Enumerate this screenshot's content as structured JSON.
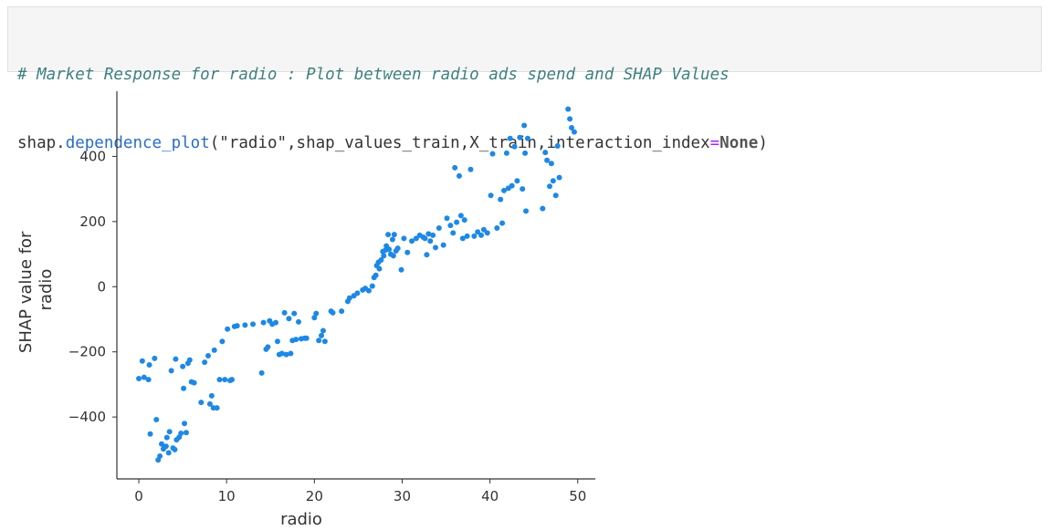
{
  "code_cell": {
    "comment": "# Market Response for radio : Plot between radio ads spend and SHAP Values",
    "call_module": "shap.",
    "call_function": "dependence_plot",
    "call_args_open": "(\"radio\",shap_values_train,X_train,interaction_index",
    "call_equals": "=",
    "call_value": "None",
    "call_close": ")"
  },
  "chart_data": {
    "type": "scatter",
    "xlabel": "radio",
    "ylabel_lines": [
      "SHAP value for",
      "radio"
    ],
    "xlim": [
      -2.5,
      52
    ],
    "ylim": [
      -590,
      600
    ],
    "x_ticks": [
      0,
      10,
      20,
      30,
      40,
      50
    ],
    "y_ticks": [
      -400,
      -200,
      0,
      200,
      400
    ],
    "x_tick_labels": [
      "0",
      "10",
      "20",
      "30",
      "40",
      "50"
    ],
    "y_tick_labels": [
      "−400",
      "−200",
      "0",
      "200",
      "400"
    ],
    "grid": false,
    "point_color": "#1e88e5",
    "points": [
      [
        0,
        -282
      ],
      [
        0.4,
        -228
      ],
      [
        0.6,
        -278
      ],
      [
        1.1,
        -285
      ],
      [
        1.3,
        -452
      ],
      [
        1.2,
        -240
      ],
      [
        1.8,
        -220
      ],
      [
        2.0,
        -408
      ],
      [
        2.2,
        -532
      ],
      [
        2.4,
        -520
      ],
      [
        2.6,
        -483
      ],
      [
        2.8,
        -498
      ],
      [
        3.1,
        -490
      ],
      [
        3.2,
        -463
      ],
      [
        3.4,
        -510
      ],
      [
        3.5,
        -445
      ],
      [
        3.7,
        -258
      ],
      [
        3.9,
        -495
      ],
      [
        4.1,
        -500
      ],
      [
        4.3,
        -470
      ],
      [
        4.2,
        -222
      ],
      [
        4.6,
        -462
      ],
      [
        4.8,
        -450
      ],
      [
        5.0,
        -245
      ],
      [
        5.1,
        -312
      ],
      [
        5.2,
        -420
      ],
      [
        5.4,
        -448
      ],
      [
        5.6,
        -235
      ],
      [
        5.8,
        -225
      ],
      [
        6.0,
        -292
      ],
      [
        6.3,
        -295
      ],
      [
        7.1,
        -355
      ],
      [
        7.5,
        -232
      ],
      [
        7.9,
        -212
      ],
      [
        8.1,
        -360
      ],
      [
        8.3,
        -335
      ],
      [
        8.5,
        -372
      ],
      [
        8.6,
        -195
      ],
      [
        8.9,
        -372
      ],
      [
        9.2,
        -285
      ],
      [
        9.5,
        -168
      ],
      [
        9.8,
        -285
      ],
      [
        10.1,
        -130
      ],
      [
        10.4,
        -288
      ],
      [
        10.6,
        -285
      ],
      [
        10.9,
        -122
      ],
      [
        11.2,
        -120
      ],
      [
        12.1,
        -118
      ],
      [
        13.0,
        -115
      ],
      [
        14.0,
        -265
      ],
      [
        14.2,
        -110
      ],
      [
        14.5,
        -192
      ],
      [
        14.7,
        -185
      ],
      [
        14.9,
        -105
      ],
      [
        15.2,
        -115
      ],
      [
        15.6,
        -110
      ],
      [
        15.8,
        -168
      ],
      [
        16.0,
        -208
      ],
      [
        16.3,
        -205
      ],
      [
        16.6,
        -80
      ],
      [
        16.8,
        -208
      ],
      [
        17.1,
        -98
      ],
      [
        17.3,
        -205
      ],
      [
        17.5,
        -165
      ],
      [
        17.7,
        -82
      ],
      [
        17.9,
        -162
      ],
      [
        18.2,
        -108
      ],
      [
        18.5,
        -160
      ],
      [
        18.9,
        -158
      ],
      [
        19.1,
        -158
      ],
      [
        20.0,
        -95
      ],
      [
        20.2,
        -82
      ],
      [
        20.5,
        -165
      ],
      [
        20.8,
        -150
      ],
      [
        21.0,
        -135
      ],
      [
        21.2,
        -168
      ],
      [
        21.9,
        -75
      ],
      [
        22.1,
        -80
      ],
      [
        23.1,
        -75
      ],
      [
        23.8,
        -45
      ],
      [
        24.0,
        -35
      ],
      [
        24.5,
        -28
      ],
      [
        24.9,
        -20
      ],
      [
        25.5,
        -10
      ],
      [
        25.8,
        -5
      ],
      [
        26.2,
        -12
      ],
      [
        26.6,
        2
      ],
      [
        26.8,
        28
      ],
      [
        27.0,
        35
      ],
      [
        27.1,
        65
      ],
      [
        27.3,
        75
      ],
      [
        27.4,
        55
      ],
      [
        27.6,
        82
      ],
      [
        27.8,
        108
      ],
      [
        27.9,
        95
      ],
      [
        28.1,
        112
      ],
      [
        28.2,
        125
      ],
      [
        28.4,
        160
      ],
      [
        28.5,
        115
      ],
      [
        28.7,
        100
      ],
      [
        28.9,
        145
      ],
      [
        29.0,
        95
      ],
      [
        29.1,
        160
      ],
      [
        29.3,
        110
      ],
      [
        29.5,
        118
      ],
      [
        29.9,
        52
      ],
      [
        30.2,
        148
      ],
      [
        30.6,
        105
      ],
      [
        31.1,
        140
      ],
      [
        31.6,
        148
      ],
      [
        32.0,
        158
      ],
      [
        32.4,
        152
      ],
      [
        32.6,
        148
      ],
      [
        32.8,
        98
      ],
      [
        33.0,
        162
      ],
      [
        33.2,
        140
      ],
      [
        33.5,
        158
      ],
      [
        33.8,
        120
      ],
      [
        34.2,
        180
      ],
      [
        34.7,
        128
      ],
      [
        35.1,
        210
      ],
      [
        35.5,
        188
      ],
      [
        35.8,
        165
      ],
      [
        36.0,
        365
      ],
      [
        36.2,
        198
      ],
      [
        36.5,
        340
      ],
      [
        36.7,
        218
      ],
      [
        36.9,
        148
      ],
      [
        37.1,
        205
      ],
      [
        37.4,
        155
      ],
      [
        37.8,
        360
      ],
      [
        38.2,
        155
      ],
      [
        38.6,
        168
      ],
      [
        39.0,
        158
      ],
      [
        39.3,
        175
      ],
      [
        39.7,
        165
      ],
      [
        40.1,
        280
      ],
      [
        40.3,
        408
      ],
      [
        40.8,
        180
      ],
      [
        41.2,
        268
      ],
      [
        41.4,
        195
      ],
      [
        41.6,
        295
      ],
      [
        41.9,
        410
      ],
      [
        42.1,
        302
      ],
      [
        42.3,
        455
      ],
      [
        42.5,
        310
      ],
      [
        42.8,
        430
      ],
      [
        43.1,
        325
      ],
      [
        43.4,
        458
      ],
      [
        43.7,
        300
      ],
      [
        43.9,
        495
      ],
      [
        44.0,
        410
      ],
      [
        44.1,
        232
      ],
      [
        44.3,
        455
      ],
      [
        46.0,
        240
      ],
      [
        46.3,
        412
      ],
      [
        46.5,
        388
      ],
      [
        46.8,
        308
      ],
      [
        47.0,
        378
      ],
      [
        47.2,
        325
      ],
      [
        47.5,
        280
      ],
      [
        47.7,
        432
      ],
      [
        47.9,
        335
      ],
      [
        48.9,
        545
      ],
      [
        49.1,
        515
      ],
      [
        49.3,
        488
      ],
      [
        49.6,
        475
      ]
    ]
  }
}
